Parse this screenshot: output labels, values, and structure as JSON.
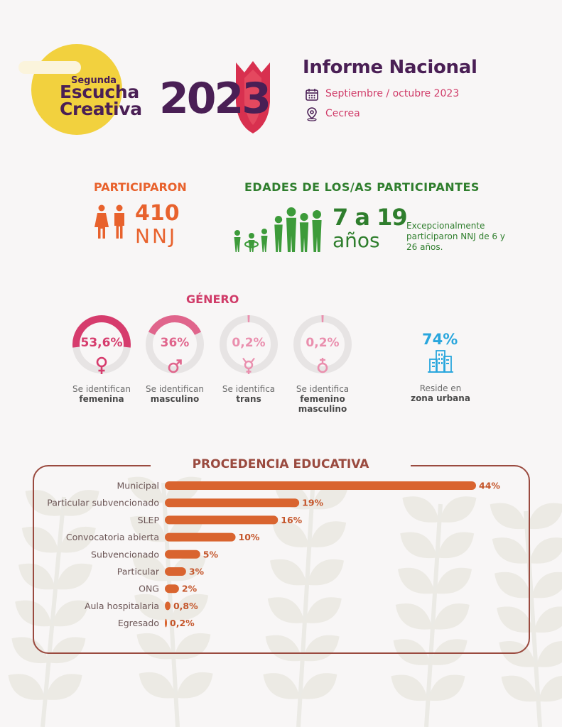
{
  "header": {
    "logo_small": "Segunda",
    "logo_line1": "Escucha",
    "logo_line2": "Creativa",
    "logo_year": "2023",
    "title": "Informe Nacional",
    "date": "Septiembre / octubre 2023",
    "location": "Cecrea",
    "icons": [
      "calendar-icon",
      "location-pin-icon"
    ]
  },
  "participants": {
    "title": "PARTICIPARON",
    "count": "410",
    "unit": "NNJ",
    "icon": "people-icon"
  },
  "ages": {
    "title": "EDADES DE LOS/AS PARTICIPANTES",
    "range": "7 a 19",
    "unit": "años",
    "note": "Excepcionalmente participaron NNJ de 6 y 26 años.",
    "icon": "youth-group-icon"
  },
  "gender": {
    "title": "GÉNERO",
    "items": [
      {
        "value": "53,6%",
        "fraction": 0.536,
        "label": "Se identifican",
        "bold": "femenina",
        "bold2": "",
        "color": "#d63c6d",
        "icon": "female-symbol-icon"
      },
      {
        "value": "36%",
        "fraction": 0.36,
        "label": "Se identifican",
        "bold": "masculino",
        "bold2": "",
        "color": "#e0658c",
        "icon": "male-symbol-icon"
      },
      {
        "value": "0,2%",
        "fraction": 0.002,
        "label": "Se identifica",
        "bold": "trans",
        "bold2": "",
        "color": "#ea8fae",
        "icon": "transgender-symbol-icon"
      },
      {
        "value": "0,2%",
        "fraction": 0.002,
        "label": "Se identifica",
        "bold": "femenino",
        "bold2": "masculino",
        "color": "#ea8fae",
        "icon": "androgyne-symbol-icon"
      }
    ]
  },
  "urban": {
    "value": "74%",
    "label": "Reside en",
    "bold": "zona urbana",
    "color": "#29a6dd",
    "icon": "city-buildings-icon"
  },
  "chart_data": {
    "type": "bar",
    "orientation": "horizontal",
    "title": "PROCEDENCIA EDUCATIVA",
    "categories": [
      "Municipal",
      "Particular subvencionado",
      "SLEP",
      "Convocatoria abierta",
      "Subvencionado",
      "Particular",
      "ONG",
      "Aula hospitalaria",
      "Egresado"
    ],
    "values": [
      44,
      19,
      16,
      10,
      5,
      3,
      2,
      0.8,
      0.2
    ],
    "value_labels": [
      "44%",
      "19%",
      "16%",
      "10%",
      "5%",
      "3%",
      "2%",
      "0,8%",
      "0,2%"
    ],
    "xlim": [
      0,
      44
    ],
    "bar_color": "#d9642f",
    "grid": false
  }
}
